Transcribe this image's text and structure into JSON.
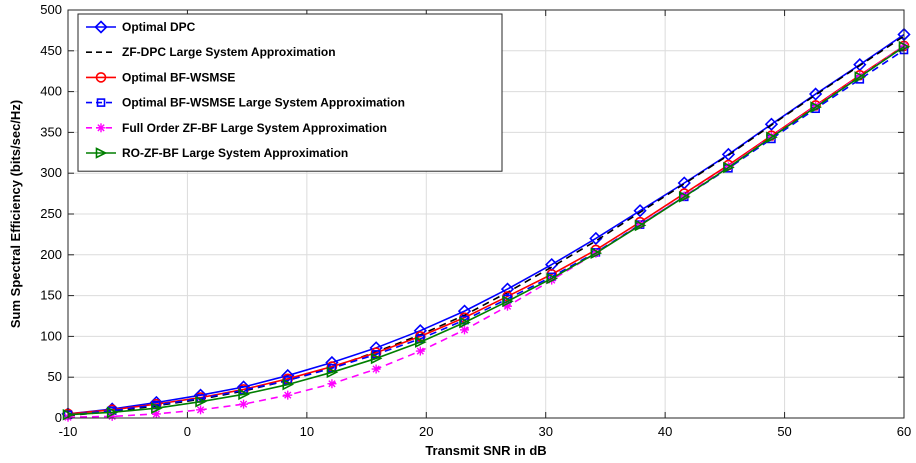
{
  "chart_data": {
    "type": "line",
    "title": "",
    "xlabel": "Transmit SNR in dB",
    "ylabel": "Sum Spectral Efficiency (bits/sec/Hz)",
    "xlim": [
      -10,
      60
    ],
    "ylim": [
      0,
      500
    ],
    "xticks": [
      -10,
      0,
      10,
      20,
      30,
      40,
      50,
      60
    ],
    "yticks": [
      0,
      50,
      100,
      150,
      200,
      250,
      300,
      350,
      400,
      450,
      500
    ],
    "grid": true,
    "legend_position": "top-left",
    "x": [
      -10,
      -6.3,
      -2.6,
      1.1,
      4.7,
      8.4,
      12.1,
      15.8,
      19.5,
      23.2,
      26.8,
      30.5,
      34.2,
      37.9,
      41.6,
      45.3,
      48.9,
      52.6,
      56.3,
      60
    ],
    "series": [
      {
        "name": "Optimal DPC",
        "color": "#0000ff",
        "line_style": "solid",
        "marker": "diamond",
        "values": [
          5,
          11,
          19,
          28,
          38,
          52,
          68,
          86,
          107,
          131,
          158,
          188,
          220,
          254,
          288,
          323,
          360,
          397,
          433,
          470
        ]
      },
      {
        "name": "ZF-DPC Large System Approximation",
        "color": "#000000",
        "line_style": "dashed",
        "marker": "none",
        "values": [
          3,
          8,
          15,
          23,
          33,
          46,
          62,
          81,
          102,
          126,
          154,
          185,
          217,
          252,
          287,
          322,
          359,
          396,
          432,
          468
        ]
      },
      {
        "name": "Optimal BF-WSMSE",
        "color": "#ff0000",
        "line_style": "solid",
        "marker": "circle",
        "values": [
          5,
          10,
          17,
          25,
          35,
          48,
          63,
          80,
          100,
          123,
          149,
          176,
          206,
          240,
          275,
          310,
          346,
          383,
          420,
          456
        ]
      },
      {
        "name": "Optimal BF-WSMSE Large System Approximation",
        "color": "#0000ff",
        "line_style": "dashed",
        "marker": "square",
        "values": [
          4,
          9,
          16,
          24,
          34,
          46,
          61,
          78,
          97,
          120,
          146,
          173,
          203,
          237,
          271,
          306,
          342,
          379,
          415,
          451
        ]
      },
      {
        "name": "Full Order ZF-BF Large System Approximation",
        "color": "#ff00ff",
        "line_style": "dashed",
        "marker": "asterisk",
        "values": [
          1,
          2,
          5,
          10,
          17,
          28,
          42,
          60,
          82,
          108,
          137,
          169,
          202,
          237,
          272,
          308,
          345,
          382,
          419,
          456
        ]
      },
      {
        "name": "RO-ZF-BF Large System Approximation",
        "color": "#007f00",
        "line_style": "solid",
        "marker": "triangle-right",
        "values": [
          4,
          7,
          12,
          20,
          29,
          41,
          56,
          73,
          93,
          117,
          143,
          171,
          202,
          236,
          271,
          307,
          344,
          381,
          418,
          455
        ]
      }
    ]
  }
}
